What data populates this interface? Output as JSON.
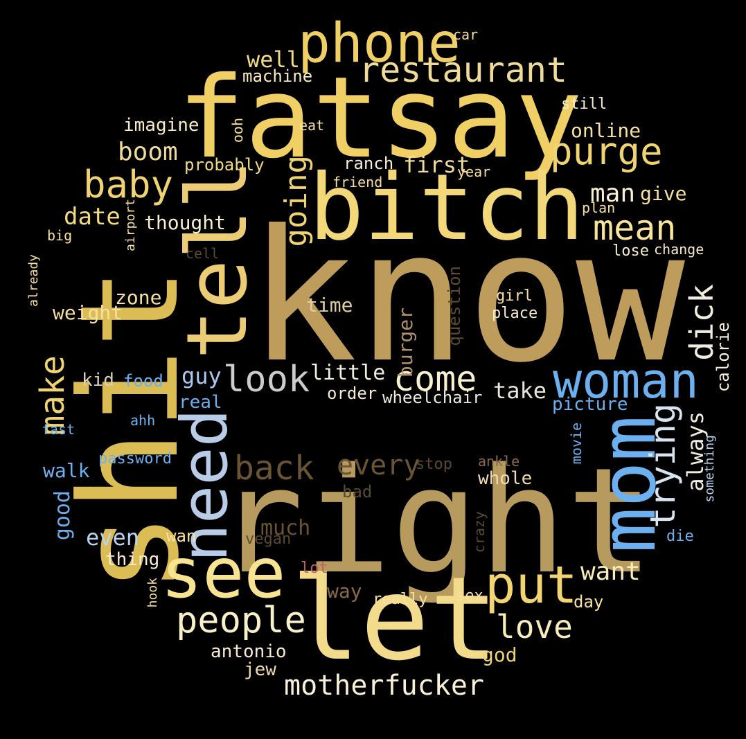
{
  "words": [
    {
      "text": "know",
      "color": "#be9c5c"
    },
    {
      "text": "right",
      "color": "#b69a5e"
    },
    {
      "text": "fatsay",
      "color": "#f0d064"
    },
    {
      "text": "bitch",
      "color": "#f2d878"
    },
    {
      "text": "shit",
      "color": "#dcbc54"
    },
    {
      "text": "let",
      "color": "#f2dc8c"
    },
    {
      "text": "see",
      "color": "#f8e490"
    },
    {
      "text": "tell",
      "color": "#eccc74"
    },
    {
      "text": "mom",
      "color": "#6cb0f0"
    },
    {
      "text": "woman",
      "color": "#6cb0f0"
    },
    {
      "text": "phone",
      "color": "#f0d064"
    },
    {
      "text": "need",
      "color": "#b8cce8"
    },
    {
      "text": "put",
      "color": "#f2d470"
    },
    {
      "text": "restaurant",
      "color": "#f0dc98"
    },
    {
      "text": "purge",
      "color": "#f0d470"
    },
    {
      "text": "baby",
      "color": "#f0d474"
    },
    {
      "text": "mean",
      "color": "#f8e498"
    },
    {
      "text": "back",
      "color": "#6a5434"
    },
    {
      "text": "look",
      "color": "#cccccc"
    },
    {
      "text": "people",
      "color": "#f8f0c8"
    },
    {
      "text": "trying",
      "color": "#d8e4f0"
    },
    {
      "text": "come",
      "color": "#f8f0d0"
    },
    {
      "text": "love",
      "color": "#f8ecb8"
    },
    {
      "text": "motherfucker",
      "color": "#f8f0d8"
    },
    {
      "text": "make",
      "color": "#f0d474"
    },
    {
      "text": "dick",
      "color": "#f0ece0"
    },
    {
      "text": "going",
      "color": "#f0d474"
    },
    {
      "text": "every",
      "color": "#6a5434"
    },
    {
      "text": "want",
      "color": "#f8ecb8"
    },
    {
      "text": "boom",
      "color": "#f0dc98"
    },
    {
      "text": "date",
      "color": "#f2dc80"
    },
    {
      "text": "take",
      "color": "#e8e4dc"
    },
    {
      "text": "man",
      "color": "#f8f0d0"
    },
    {
      "text": "well",
      "color": "#f2dc80"
    },
    {
      "text": "always",
      "color": "#f0ece0"
    },
    {
      "text": "little",
      "color": "#f0ece0"
    },
    {
      "text": "guy",
      "color": "#a8c8f0"
    },
    {
      "text": "even",
      "color": "#b8d4f0"
    },
    {
      "text": "first",
      "color": "#f0dc98"
    },
    {
      "text": "thought",
      "color": "#f8f0d0"
    },
    {
      "text": "zone",
      "color": "#f8e0a0"
    },
    {
      "text": "weight",
      "color": "#f8e0a0"
    },
    {
      "text": "online",
      "color": "#f8e0a0"
    },
    {
      "text": "much",
      "color": "#6a5434"
    },
    {
      "text": "time",
      "color": "#e0d0a0"
    },
    {
      "text": "kid",
      "color": "#d8d0b8"
    },
    {
      "text": "good",
      "color": "#6cb0f0"
    },
    {
      "text": "walk",
      "color": "#6cb0f0"
    },
    {
      "text": "imagine",
      "color": "#f8ecc0"
    },
    {
      "text": "machine",
      "color": "#f8ecc0"
    },
    {
      "text": "probably",
      "color": "#f2dc80"
    },
    {
      "text": "ranch",
      "color": "#f8f0d8"
    },
    {
      "text": "whole",
      "color": "#f0dcb0"
    },
    {
      "text": "burger",
      "color": "#b09068"
    },
    {
      "text": "question",
      "color": "#5a4a30"
    },
    {
      "text": "jew",
      "color": "#f0dcb0"
    },
    {
      "text": "antonio",
      "color": "#f8ecd0"
    },
    {
      "text": "god",
      "color": "#f0d474"
    },
    {
      "text": "way",
      "color": "#8a6a48"
    },
    {
      "text": "picture",
      "color": "#6cb0f0"
    },
    {
      "text": "thing",
      "color": "#f8ecd0"
    },
    {
      "text": "give",
      "color": "#f8e0a0"
    },
    {
      "text": "order",
      "color": "#f8ecd0"
    },
    {
      "text": "real",
      "color": "#6cb0f0"
    },
    {
      "text": "food",
      "color": "#6cb0f0"
    },
    {
      "text": "bad",
      "color": "#5a4a30"
    },
    {
      "text": "calorie",
      "color": "#f8f0d8"
    },
    {
      "text": "day",
      "color": "#f8e0a0"
    },
    {
      "text": "wan",
      "color": "#f8e0a0"
    },
    {
      "text": "password",
      "color": "#6cb0f0"
    },
    {
      "text": "wheelchair",
      "color": "#f0ece0"
    },
    {
      "text": "girl",
      "color": "#f8e0a0"
    },
    {
      "text": "place",
      "color": "#f8ecd0"
    },
    {
      "text": "crazy",
      "color": "#5a4a30"
    },
    {
      "text": "something",
      "color": "#b8d4f0"
    },
    {
      "text": "movie",
      "color": "#6cb0f0"
    },
    {
      "text": "die",
      "color": "#6cb0f0"
    },
    {
      "text": "vegan",
      "color": "#5a4a30"
    },
    {
      "text": "lot",
      "color": "#c06060"
    },
    {
      "text": "really",
      "color": "#f8e0a0"
    },
    {
      "text": "sex",
      "color": "#f8e0a0"
    },
    {
      "text": "stop",
      "color": "#5a4a30"
    },
    {
      "text": "ankle",
      "color": "#8a6a48"
    },
    {
      "text": "hook",
      "color": "#f8e0a0"
    },
    {
      "text": "airport",
      "color": "#f8e0a0"
    },
    {
      "text": "already",
      "color": "#f8e0a0"
    },
    {
      "text": "big",
      "color": "#f8e0a0"
    },
    {
      "text": "cell",
      "color": "#5a4a30"
    },
    {
      "text": "fast",
      "color": "#6cb0f0"
    },
    {
      "text": "ahh",
      "color": "#6cb0f0"
    },
    {
      "text": "plan",
      "color": "#f8e0a0"
    },
    {
      "text": "lose",
      "color": "#f8ecd0"
    },
    {
      "text": "change",
      "color": "#f8ecd0"
    },
    {
      "text": "still",
      "color": "#f8ecd0"
    },
    {
      "text": "year",
      "color": "#f8e0a0"
    },
    {
      "text": "friend",
      "color": "#f8e0a0"
    },
    {
      "text": "eat",
      "color": "#f8e0a0"
    },
    {
      "text": "ooh",
      "color": "#f8e0a0"
    },
    {
      "text": "car",
      "color": "#f8e0a0"
    }
  ]
}
